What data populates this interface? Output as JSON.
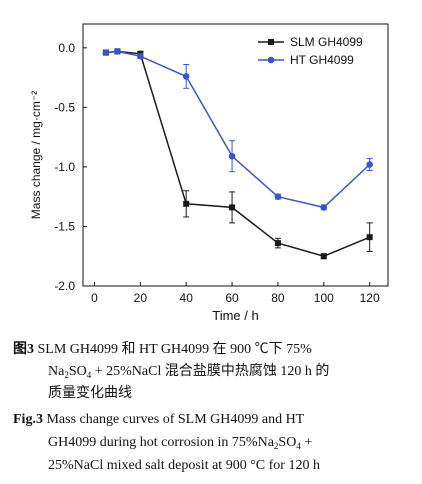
{
  "chart_data": {
    "type": "line",
    "xlabel": "Time / h",
    "ylabel": "Mass change / mg·cm⁻²",
    "xlim": [
      -5,
      128
    ],
    "ylim": [
      -2.0,
      0.2
    ],
    "x_ticks": [
      0,
      20,
      40,
      60,
      80,
      100,
      120
    ],
    "y_ticks": [
      0.0,
      -0.5,
      -1.0,
      -1.5,
      -2.0
    ],
    "x_tick_labels": [
      "0",
      "20",
      "40",
      "60",
      "80",
      "100",
      "120"
    ],
    "y_tick_labels": [
      "0.0",
      "-0.5",
      "-1.0",
      "-1.5",
      "-2.0"
    ],
    "legend_position": "top-right",
    "grid": false,
    "series": [
      {
        "name": "SLM GH4099",
        "color": "#1a1a1a",
        "marker": "square",
        "x": [
          5,
          10,
          20,
          40,
          60,
          80,
          100,
          120
        ],
        "y": [
          -0.04,
          -0.03,
          -0.05,
          -1.31,
          -1.34,
          -1.64,
          -1.75,
          -1.59
        ],
        "err": [
          0.01,
          0.01,
          0.02,
          0.11,
          0.13,
          0.04,
          0.02,
          0.12
        ]
      },
      {
        "name": "HT GH4099",
        "color": "#3a55c8",
        "marker": "circle",
        "x": [
          5,
          10,
          20,
          40,
          60,
          80,
          100,
          120
        ],
        "y": [
          -0.04,
          -0.03,
          -0.07,
          -0.24,
          -0.91,
          -1.25,
          -1.34,
          -0.98
        ],
        "err": [
          0.01,
          0.01,
          0.02,
          0.1,
          0.13,
          0.02,
          0.02,
          0.05
        ]
      }
    ]
  },
  "caption": {
    "cn_label": "图3",
    "cn_line1": " SLM GH4099 和 HT GH4099 在 900 ℃下 75%",
    "cn_line2_a": "Na",
    "cn_line2_sub1": "2",
    "cn_line2_b": "SO",
    "cn_line2_sub2": "4",
    "cn_line2_c": " + 25%NaCl 混合盐膜中热腐蚀 120 h 的",
    "cn_line3": "质量变化曲线",
    "en_label": "Fig.3",
    "en_line1": " Mass change curves of SLM GH4099 and HT",
    "en_line2_a": "GH4099 during hot corrosion in 75%Na",
    "en_line2_sub1": "2",
    "en_line2_b": "SO",
    "en_line2_sub2": "4",
    "en_line2_c": " +",
    "en_line3": "25%NaCl mixed salt deposit at 900 °C for 120 h"
  }
}
